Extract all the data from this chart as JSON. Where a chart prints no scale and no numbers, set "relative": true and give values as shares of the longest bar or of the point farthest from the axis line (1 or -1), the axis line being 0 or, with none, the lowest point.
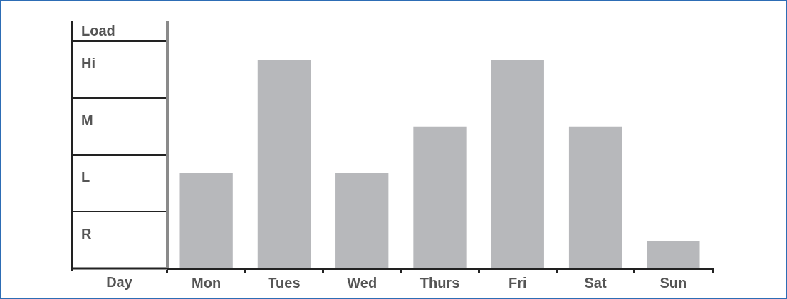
{
  "chart_data": {
    "type": "bar",
    "xlabel": "Day",
    "ylabel": "Load",
    "categories": [
      "Mon",
      "Tues",
      "Wed",
      "Thurs",
      "Fri",
      "Sat",
      "Sun"
    ],
    "values": [
      0.46,
      1,
      0.46,
      0.68,
      1,
      0.68,
      0.13
    ],
    "relative": true,
    "color": "#b7b8bb",
    "annotations": [
      "R",
      "L",
      "M",
      "Hi"
    ],
    "legend": false
  }
}
